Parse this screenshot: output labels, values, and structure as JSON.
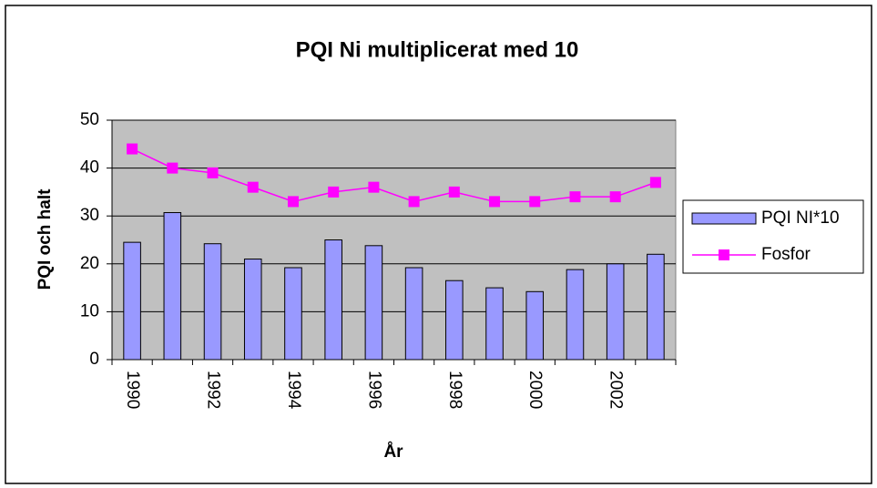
{
  "chart_data": {
    "type": "bar",
    "title": "PQI Ni multiplicerat med 10",
    "x_label": "År",
    "y_label": "PQI och halt",
    "categories": [
      "1990",
      null,
      "1992",
      null,
      "1994",
      null,
      "1996",
      null,
      "1998",
      null,
      "2000",
      null,
      "2002",
      null
    ],
    "series": [
      {
        "name": "PQI NI*10",
        "type": "bar",
        "color": "#9999ff",
        "values": [
          24.5,
          30.7,
          24.2,
          21,
          19.2,
          25,
          23.8,
          19.2,
          16.5,
          15,
          14.2,
          18.8,
          20,
          22
        ]
      },
      {
        "name": "Fosfor",
        "type": "line",
        "color": "#ff00ff",
        "values": [
          44,
          40,
          39,
          36,
          33,
          35,
          36,
          33,
          35,
          33,
          33,
          34,
          34,
          37
        ]
      }
    ],
    "ylim": [
      0,
      50
    ],
    "yticks": [
      0,
      10,
      20,
      30,
      40,
      50
    ],
    "grid": true,
    "legend": "right"
  }
}
